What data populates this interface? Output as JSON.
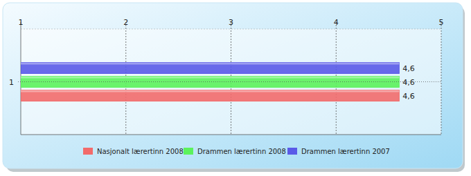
{
  "chart_data": {
    "type": "bar",
    "orientation": "horizontal",
    "categories": [
      "1"
    ],
    "series": [
      {
        "name": "Nasjonalt lærertinn 2008",
        "color": "#f26b6b",
        "values": [
          4.6
        ],
        "value_labels": [
          "4,6"
        ]
      },
      {
        "name": "Drammen lærertinn 2008",
        "color": "#5cf25c",
        "values": [
          4.6
        ],
        "value_labels": [
          "4,6"
        ]
      },
      {
        "name": "Drammen lærertinn 2007",
        "color": "#5a5ae8",
        "values": [
          4.6
        ],
        "value_labels": [
          "4,6"
        ]
      }
    ],
    "xlim": [
      1,
      5
    ],
    "xticks": [
      1,
      2,
      3,
      4,
      5
    ],
    "grid": true,
    "data_labels": true,
    "legend": "bottom"
  }
}
